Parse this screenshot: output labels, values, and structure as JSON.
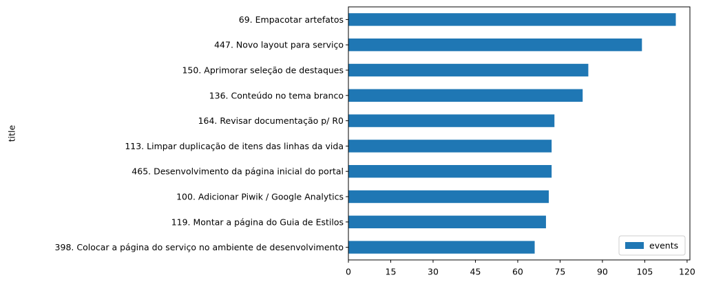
{
  "chart_data": {
    "type": "bar",
    "orientation": "horizontal",
    "ylabel": "title",
    "xlabel": "",
    "xlim": [
      0,
      121
    ],
    "xticks": [
      0,
      15,
      30,
      45,
      60,
      75,
      90,
      105,
      120
    ],
    "grid": false,
    "legend_position": "lower-right",
    "categories": [
      "69. Empacotar artefatos",
      "447. Novo layout para serviço",
      "150. Aprimorar seleção de destaques",
      "136. Conteúdo no tema branco",
      "164. Revisar documentação p/ R0",
      "113. Limpar duplicação de itens das linhas da vida",
      "465. Desenvolvimento da página inicial do portal",
      "100. Adicionar Piwik / Google Analytics",
      "119. Montar a página do Guia de Estilos",
      "398. Colocar a página do serviço no ambiente de desenvolvimento"
    ],
    "series": [
      {
        "name": "events",
        "color": "#1f77b4",
        "values": [
          116,
          104,
          85,
          83,
          73,
          72,
          72,
          71,
          70,
          66
        ]
      }
    ]
  }
}
